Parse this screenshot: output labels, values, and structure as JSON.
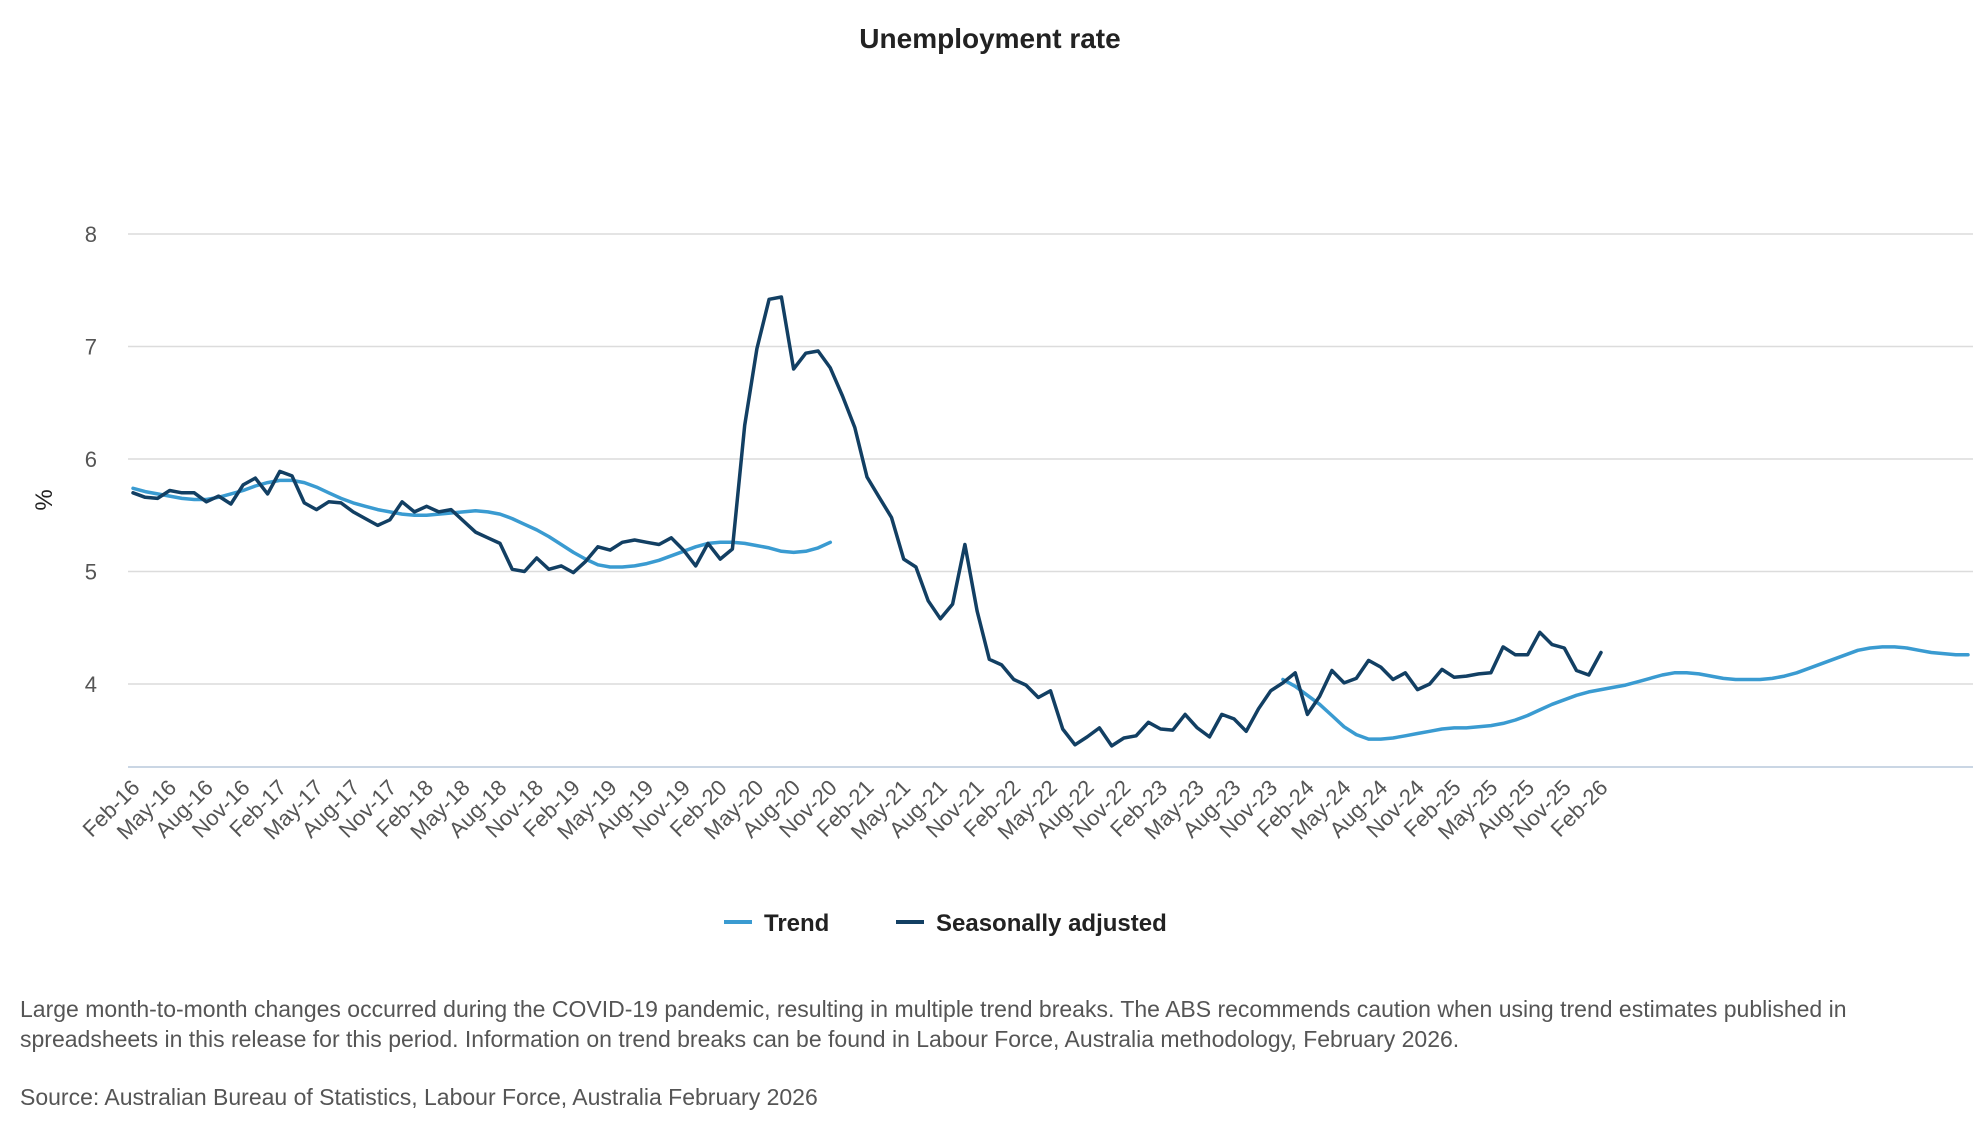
{
  "chart_data": {
    "type": "line",
    "title": "Unemployment rate",
    "xlabel": "",
    "ylabel": "%",
    "ylim": [
      3.25,
      8
    ],
    "yticks": [
      4,
      5,
      6,
      7,
      8
    ],
    "grid": true,
    "legend_position": "bottom-center",
    "x_start": "Feb-16",
    "x_tick_labels": [
      "Feb-16",
      "May-16",
      "Aug-16",
      "Nov-16",
      "Feb-17",
      "May-17",
      "Aug-17",
      "Nov-17",
      "Feb-18",
      "May-18",
      "Aug-18",
      "Nov-18",
      "Feb-19",
      "May-19",
      "Aug-19",
      "Nov-19",
      "Feb-20",
      "May-20",
      "Aug-20",
      "Nov-20",
      "Feb-21",
      "May-21",
      "Aug-21",
      "Nov-21",
      "Feb-22",
      "May-22",
      "Aug-22",
      "Nov-22",
      "Feb-23",
      "May-23",
      "Aug-23",
      "Nov-23",
      "Feb-24",
      "May-24",
      "Aug-24",
      "Nov-24",
      "Feb-25",
      "May-25",
      "Aug-25",
      "Nov-25",
      "Feb-26"
    ],
    "series": [
      {
        "name": "Trend",
        "color": "#3a9bd1",
        "values": [
          5.74,
          5.71,
          5.69,
          5.67,
          5.65,
          5.64,
          5.64,
          5.66,
          5.69,
          5.72,
          5.76,
          5.79,
          5.81,
          5.81,
          5.79,
          5.75,
          5.7,
          5.65,
          5.61,
          5.58,
          5.55,
          5.53,
          5.51,
          5.5,
          5.5,
          5.51,
          5.52,
          5.53,
          5.54,
          5.53,
          5.51,
          5.47,
          5.42,
          5.37,
          5.31,
          5.24,
          5.17,
          5.11,
          5.06,
          5.04,
          5.04,
          5.05,
          5.07,
          5.1,
          5.14,
          5.18,
          5.22,
          5.25,
          5.26,
          5.26,
          5.25,
          5.23,
          5.21,
          5.18,
          5.17,
          5.18,
          5.21,
          5.26,
          null,
          null,
          null,
          null,
          null,
          null,
          null,
          null,
          null,
          null,
          null,
          null,
          null,
          null,
          null,
          null,
          null,
          null,
          null,
          null,
          null,
          null,
          null,
          null,
          null,
          null,
          null,
          null,
          null,
          null,
          null,
          null,
          null,
          null,
          null,
          null,
          4.04,
          3.98,
          3.9,
          3.82,
          3.72,
          3.62,
          3.55,
          3.51,
          3.51,
          3.52,
          3.54,
          3.56,
          3.58,
          3.6,
          3.61,
          3.61,
          3.62,
          3.63,
          3.65,
          3.68,
          3.72,
          3.77,
          3.82,
          3.86,
          3.9,
          3.93,
          3.95,
          3.97,
          3.99,
          4.02,
          4.05,
          4.08,
          4.1,
          4.1,
          4.09,
          4.07,
          4.05,
          4.04,
          4.04,
          4.04,
          4.05,
          4.07,
          4.1,
          4.14,
          4.18,
          4.22,
          4.26,
          4.3,
          4.32,
          4.33,
          4.33,
          4.32,
          4.3,
          4.28,
          4.27,
          4.26,
          4.26
        ]
      },
      {
        "name": "Seasonally adjusted",
        "color": "#123f63",
        "values": [
          5.7,
          5.66,
          5.65,
          5.72,
          5.7,
          5.7,
          5.62,
          5.67,
          5.6,
          5.77,
          5.83,
          5.69,
          5.89,
          5.85,
          5.61,
          5.55,
          5.62,
          5.61,
          5.53,
          5.47,
          5.41,
          5.46,
          5.62,
          5.53,
          5.58,
          5.53,
          5.55,
          5.45,
          5.35,
          5.3,
          5.25,
          5.02,
          5,
          5.12,
          5.02,
          5.05,
          4.99,
          5.09,
          5.22,
          5.19,
          5.26,
          5.28,
          5.26,
          5.24,
          5.3,
          5.19,
          5.05,
          5.25,
          5.11,
          5.2,
          6.3,
          6.98,
          7.42,
          7.44,
          6.8,
          6.94,
          6.96,
          6.81,
          6.56,
          6.28,
          5.84,
          5.66,
          5.48,
          5.11,
          5.04,
          4.74,
          4.58,
          4.71,
          5.24,
          4.65,
          4.22,
          4.17,
          4.04,
          3.99,
          3.88,
          3.94,
          3.6,
          3.46,
          3.53,
          3.61,
          3.45,
          3.52,
          3.54,
          3.66,
          3.6,
          3.59,
          3.73,
          3.61,
          3.53,
          3.73,
          3.69,
          3.58,
          3.78,
          3.94,
          4.01,
          4.1,
          3.73,
          3.89,
          4.12,
          4.01,
          4.05,
          4.21,
          4.15,
          4.04,
          4.1,
          3.95,
          4,
          4.13,
          4.06,
          4.07,
          4.09,
          4.1,
          4.33,
          4.26,
          4.26,
          4.46,
          4.35,
          4.32,
          4.12,
          4.08,
          4.28
        ]
      }
    ]
  },
  "notes": {
    "caveat": "Large month-to-month changes occurred during the COVID-19 pandemic, resulting in multiple trend breaks. The ABS recommends caution when using trend estimates published in spreadsheets in this release for this period. Information on trend breaks can be found in Labour Force, Australia methodology, February 2026.",
    "source": "Source: Australian Bureau of Statistics, Labour Force, Australia February 2026"
  }
}
